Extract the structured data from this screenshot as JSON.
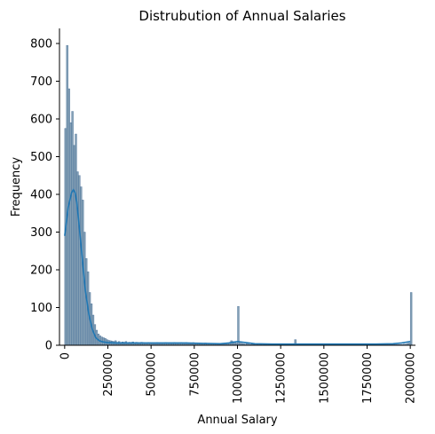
{
  "chart_data": {
    "type": "bar",
    "title": "Distrubution of Annual Salaries",
    "xlabel": "Annual Salary",
    "ylabel": "Frequency",
    "xlim": [
      -30000,
      2030000
    ],
    "ylim": [
      0,
      840
    ],
    "x_ticks": [
      0,
      250000,
      500000,
      750000,
      1000000,
      1250000,
      1500000,
      1750000,
      2000000
    ],
    "y_ticks": [
      0,
      100,
      200,
      300,
      400,
      500,
      600,
      700,
      800
    ],
    "grid": false,
    "legend": "none",
    "bin_width": 10000,
    "bin_starts": [
      0,
      10000,
      20000,
      30000,
      40000,
      50000,
      60000,
      70000,
      80000,
      90000,
      100000,
      110000,
      120000,
      130000,
      140000,
      150000,
      160000,
      170000,
      180000,
      190000,
      200000,
      210000,
      220000,
      230000,
      240000,
      250000,
      260000,
      270000,
      280000,
      290000,
      300000,
      310000,
      320000,
      330000,
      340000,
      350000,
      360000,
      370000,
      380000,
      390000,
      400000,
      410000,
      420000,
      430000,
      440000,
      450000,
      460000,
      470000,
      480000,
      490000,
      500000,
      510000,
      520000,
      530000,
      540000,
      550000,
      560000,
      570000,
      580000,
      590000,
      600000,
      610000,
      620000,
      630000,
      640000,
      650000,
      660000,
      670000,
      680000,
      690000,
      700000,
      710000,
      720000,
      730000,
      740000,
      750000,
      760000,
      770000,
      780000,
      790000,
      800000,
      810000,
      820000,
      830000,
      840000,
      850000,
      860000,
      870000,
      880000,
      890000,
      900000,
      910000,
      920000,
      930000,
      940000,
      950000,
      960000,
      970000,
      980000,
      990000,
      1000000,
      1010000,
      1020000,
      1030000,
      1040000,
      1050000,
      1060000,
      1070000,
      1080000,
      1090000,
      1100000,
      1110000,
      1120000,
      1130000,
      1140000,
      1150000,
      1160000,
      1170000,
      1180000,
      1190000,
      1200000,
      1210000,
      1220000,
      1230000,
      1240000,
      1250000,
      1260000,
      1270000,
      1280000,
      1290000,
      1300000,
      1310000,
      1320000,
      1330000,
      1340000,
      1350000,
      1360000,
      1370000,
      1380000,
      1390000,
      1400000,
      1410000,
      1420000,
      1430000,
      1440000,
      1450000,
      1460000,
      1470000,
      1480000,
      1490000,
      1500000,
      1510000,
      1520000,
      1530000,
      1540000,
      1550000,
      1560000,
      1570000,
      1580000,
      1590000,
      1600000,
      1610000,
      1620000,
      1630000,
      1640000,
      1650000,
      1660000,
      1670000,
      1680000,
      1690000,
      1700000,
      1710000,
      1720000,
      1730000,
      1740000,
      1750000,
      1760000,
      1770000,
      1780000,
      1790000,
      1800000,
      1810000,
      1820000,
      1830000,
      1840000,
      1850000,
      1860000,
      1870000,
      1880000,
      1890000,
      1900000,
      1910000,
      1920000,
      1930000,
      1940000,
      1950000,
      1960000,
      1970000,
      1980000,
      1990000,
      2000000
    ],
    "values": [
      575,
      795,
      680,
      590,
      620,
      530,
      560,
      460,
      450,
      420,
      385,
      300,
      230,
      195,
      140,
      110,
      80,
      55,
      40,
      30,
      25,
      22,
      20,
      18,
      15,
      13,
      12,
      11,
      10,
      12,
      8,
      10,
      7,
      9,
      8,
      10,
      6,
      8,
      7,
      9,
      6,
      8,
      7,
      6,
      8,
      7,
      6,
      5,
      7,
      6,
      6,
      5,
      6,
      7,
      5,
      6,
      5,
      6,
      7,
      6,
      5,
      6,
      5,
      7,
      6,
      5,
      6,
      7,
      5,
      6,
      7,
      6,
      5,
      6,
      7,
      6,
      5,
      6,
      5,
      4,
      5,
      6,
      4,
      5,
      4,
      5,
      3,
      4,
      4,
      5,
      4,
      3,
      4,
      6,
      5,
      6,
      12,
      10,
      8,
      6,
      103,
      6,
      5,
      4,
      3,
      4,
      3,
      2,
      3,
      2,
      3,
      2,
      3,
      2,
      3,
      2,
      2,
      3,
      2,
      2,
      3,
      2,
      2,
      3,
      2,
      4,
      3,
      2,
      2,
      3,
      2,
      2,
      2,
      15,
      2,
      3,
      2,
      2,
      2,
      3,
      2,
      2,
      2,
      2,
      2,
      2,
      3,
      2,
      2,
      2,
      2,
      2,
      2,
      2,
      2,
      2,
      3,
      2,
      2,
      2,
      2,
      2,
      2,
      2,
      2,
      2,
      2,
      2,
      2,
      2,
      2,
      2,
      2,
      2,
      2,
      2,
      2,
      2,
      2,
      2,
      2,
      2,
      2,
      2,
      2,
      2,
      2,
      2,
      2,
      2,
      2,
      2,
      2,
      2,
      2,
      2,
      3,
      3,
      5,
      6,
      140
    ],
    "kde": {
      "x": [
        0,
        20000,
        40000,
        50000,
        60000,
        70000,
        80000,
        100000,
        120000,
        140000,
        160000,
        180000,
        200000,
        220000,
        250000,
        300000,
        400000,
        500000,
        600000,
        700000,
        800000,
        900000,
        950000,
        1000000,
        1050000,
        1100000,
        1200000,
        1300000,
        1400000,
        1500000,
        1600000,
        1700000,
        1800000,
        1900000,
        1950000,
        2000000
      ],
      "y": [
        290,
        365,
        405,
        412,
        405,
        380,
        335,
        240,
        145,
        82,
        42,
        20,
        12,
        9,
        7,
        6,
        6,
        6,
        6,
        6,
        5,
        4,
        6,
        10,
        7,
        4,
        3,
        3,
        3,
        3,
        3,
        3,
        3,
        4,
        6,
        10
      ]
    },
    "colors": {
      "bar_fill": "#6e8fa8",
      "bar_edge": "#49709a",
      "kde_line": "#1f77b4"
    }
  }
}
